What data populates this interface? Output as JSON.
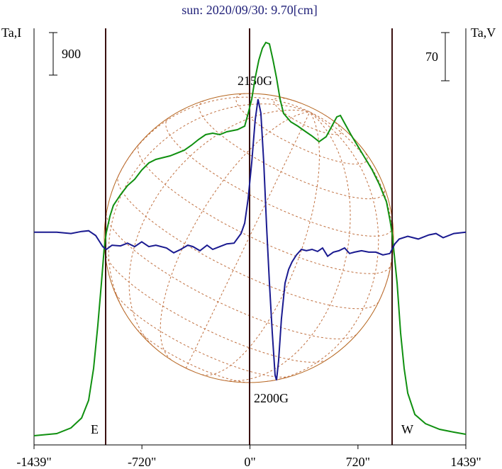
{
  "chart_data": {
    "type": "line",
    "title": "sun: 2020/09/30: 9.70[cm]",
    "ylabel": "Ta,I",
    "y2label": "Ta,V",
    "i_scale": 900,
    "v_scale": 70,
    "annotations": [
      "2150G",
      "2200G",
      "E",
      "W"
    ],
    "xlim": [
      -1439,
      1439
    ],
    "xticks": [
      {
        "value": -1439,
        "label": "-1439\""
      },
      {
        "value": -720,
        "label": "-720\""
      },
      {
        "value": 0,
        "label": "0\""
      },
      {
        "value": 720,
        "label": "720\""
      },
      {
        "value": 1439,
        "label": "1439\""
      }
    ],
    "ylim": [
      0,
      8820
    ],
    "y2lim": [
      -309,
      296
    ],
    "series": [
      {
        "color": "#109010",
        "x": [
          -1439,
          -1288,
          -1193,
          -1122,
          -1075,
          -1042,
          -1014,
          -990,
          -971,
          -957,
          -933,
          -910,
          -863,
          -816,
          -768,
          -721,
          -674,
          -627,
          -532,
          -437,
          -390,
          -343,
          -295,
          -248,
          -201,
          -154,
          -83,
          -35,
          -12,
          12,
          35,
          59,
          83,
          106,
          130,
          154,
          177,
          201,
          224,
          272,
          319,
          366,
          414,
          461,
          508,
          541,
          579,
          603,
          626,
          673,
          744,
          815,
          862,
          910,
          933,
          948,
          962,
          981,
          1004,
          1028,
          1052,
          1099,
          1170,
          1264,
          1359,
          1439
        ],
        "values": [
          195,
          240,
          360,
          570,
          945,
          1620,
          2520,
          3420,
          4170,
          4500,
          4845,
          5070,
          5295,
          5490,
          5625,
          5820,
          5970,
          6045,
          6120,
          6240,
          6345,
          6465,
          6570,
          6600,
          6570,
          6630,
          6675,
          6750,
          7020,
          7320,
          7770,
          8145,
          8400,
          8520,
          8490,
          8145,
          7770,
          7320,
          7020,
          6840,
          6750,
          6645,
          6540,
          6420,
          6525,
          6720,
          6945,
          6975,
          6840,
          6570,
          6195,
          5820,
          5520,
          5145,
          4770,
          4470,
          4020,
          3420,
          2370,
          1620,
          1095,
          645,
          450,
          330,
          270,
          225
        ]
      },
      {
        "color": "#1a1a90",
        "axis": "y2",
        "x": [
          -1439,
          -1288,
          -1193,
          -1122,
          -1075,
          -1028,
          -981,
          -957,
          -919,
          -863,
          -816,
          -768,
          -721,
          -674,
          -627,
          -556,
          -508,
          -461,
          -414,
          -380,
          -333,
          -286,
          -248,
          -201,
          -154,
          -106,
          -59,
          -35,
          -12,
          12,
          35,
          54,
          73,
          92,
          111,
          130,
          149,
          168,
          177,
          191,
          210,
          234,
          258,
          281,
          310,
          343,
          376,
          414,
          451,
          484,
          518,
          556,
          593,
          631,
          664,
          697,
          744,
          792,
          839,
          886,
          933,
          966,
          995,
          1052,
          1122,
          1193,
          1240,
          1288,
          1359,
          1439
        ],
        "values": [
          0,
          0,
          -2,
          1,
          2,
          -5,
          -21,
          -25,
          -19,
          -20,
          -16,
          -21,
          -14,
          -21,
          -19,
          -23,
          -30,
          -25,
          -19,
          -21,
          -27,
          -19,
          -25,
          -21,
          -17,
          -16,
          -2,
          13,
          49,
          101,
          163,
          193,
          173,
          101,
          8,
          -74,
          -146,
          -208,
          -215,
          -187,
          -126,
          -74,
          -54,
          -43,
          -33,
          -25,
          -27,
          -25,
          -28,
          -23,
          -35,
          -29,
          -27,
          -23,
          -31,
          -29,
          -27,
          -29,
          -29,
          -33,
          -31,
          -17,
          -10,
          -6,
          -10,
          -4,
          -2,
          -8,
          -2,
          0
        ]
      }
    ]
  }
}
